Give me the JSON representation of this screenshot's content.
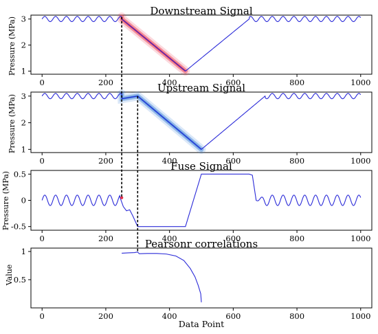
{
  "chart_data": [
    {
      "type": "line",
      "title": "Downstream Signal",
      "xlabel": "",
      "ylabel": "Pressure (MPa)",
      "xlim": [
        -35,
        1035
      ],
      "ylim": [
        0.88,
        3.15
      ],
      "xticks": [
        0,
        200,
        400,
        600,
        800,
        1000
      ],
      "yticks": [
        1,
        2,
        3
      ],
      "signal": {
        "flat_level": 3.0,
        "wave_amplitude": 0.1,
        "wave_period": 34,
        "segments": [
          {
            "x": [
              0,
              250
            ],
            "shape": "oscillation around 3.0"
          },
          {
            "x": [
              250,
              450
            ],
            "from": 3.0,
            "to": 1.0,
            "shape": "linear drop (highlighted red band)"
          },
          {
            "x": [
              450,
              650
            ],
            "from": 1.0,
            "to": 3.0,
            "shape": "linear rise"
          },
          {
            "x": [
              650,
              1000
            ],
            "shape": "oscillation around 3.0"
          }
        ]
      },
      "highlight": {
        "x_range": [
          250,
          450
        ],
        "color": "#e8304a"
      }
    },
    {
      "type": "line",
      "title": "Upstream Signal",
      "xlabel": "",
      "ylabel": "Pressure (MPa)",
      "xlim": [
        -35,
        1035
      ],
      "ylim": [
        0.88,
        3.15
      ],
      "xticks": [
        0,
        200,
        400,
        600,
        800,
        1000
      ],
      "yticks": [
        1,
        2,
        3
      ],
      "signal": {
        "flat_level": 3.0,
        "wave_amplitude": 0.1,
        "wave_period": 34,
        "segments": [
          {
            "x": [
              0,
              250
            ],
            "shape": "oscillation around 3.0"
          },
          {
            "x": [
              250,
              300
            ],
            "from": 2.9,
            "to": 3.0,
            "shape": "small bump (highlighted)"
          },
          {
            "x": [
              300,
              500
            ],
            "from": 3.0,
            "to": 1.0,
            "shape": "linear drop (highlighted blue band)"
          },
          {
            "x": [
              500,
              700
            ],
            "from": 1.0,
            "to": 3.0,
            "shape": "linear rise"
          },
          {
            "x": [
              700,
              1000
            ],
            "shape": "oscillation around 3.0"
          }
        ]
      },
      "highlight": {
        "x_range": [
          250,
          500
        ],
        "color": "#3a7fd8"
      }
    },
    {
      "type": "line",
      "title": "Fuse Signal",
      "xlabel": "",
      "ylabel": "Pressure (MPa)",
      "xlim": [
        -35,
        1035
      ],
      "ylim": [
        -0.57,
        0.57
      ],
      "xticks": [
        0,
        200,
        400,
        600,
        800,
        1000
      ],
      "yticks": [
        -0.5,
        0.0,
        0.5
      ],
      "points": [
        [
          245,
          0.05
        ],
        [
          255,
          -0.12
        ],
        [
          265,
          -0.2
        ],
        [
          275,
          -0.18
        ],
        [
          285,
          -0.3
        ],
        [
          300,
          -0.5
        ],
        [
          450,
          -0.5
        ],
        [
          500,
          0.5
        ],
        [
          650,
          0.5
        ],
        [
          660,
          0.48
        ],
        [
          672,
          0.0
        ]
      ],
      "wave_amplitude": 0.1,
      "wave_period": 34,
      "marker": {
        "x": 250,
        "y": 0.05,
        "color": "#e8304a"
      }
    },
    {
      "type": "line",
      "title": "Pearsonr correlations",
      "xlabel": "Data Point",
      "ylabel": "Value",
      "xlim": [
        -35,
        1035
      ],
      "ylim": [
        0.0,
        1.06
      ],
      "xticks": [
        0,
        200,
        400,
        600,
        800,
        1000
      ],
      "yticks": [
        0.5,
        1.0
      ],
      "points": [
        [
          250,
          0.97
        ],
        [
          270,
          0.975
        ],
        [
          290,
          0.98
        ],
        [
          300,
          0.99
        ],
        [
          305,
          0.96
        ],
        [
          330,
          0.965
        ],
        [
          360,
          0.965
        ],
        [
          390,
          0.955
        ],
        [
          420,
          0.92
        ],
        [
          445,
          0.84
        ],
        [
          465,
          0.7
        ],
        [
          480,
          0.55
        ],
        [
          490,
          0.4
        ],
        [
          498,
          0.25
        ],
        [
          500,
          0.1
        ]
      ]
    }
  ],
  "connectors": [
    {
      "x": 250,
      "from_chart": 0,
      "to_chart": 2
    },
    {
      "x": 300,
      "from_chart": 1,
      "to_chart": 3
    }
  ],
  "colors": {
    "line": "#2a2ad8",
    "red_band": "#e8304a",
    "blue_band": "#3a7fd8",
    "connector": "#000000"
  }
}
